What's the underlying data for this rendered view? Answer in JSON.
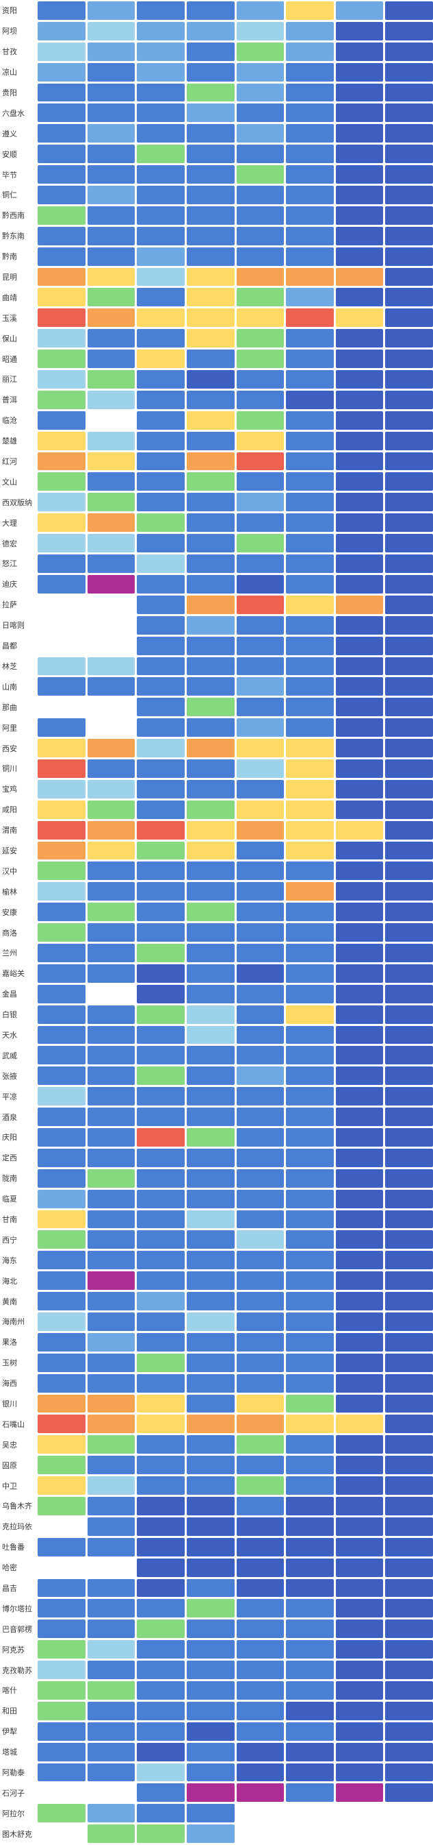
{
  "palette": {
    "w": "#ffffff",
    "db": "#3d5fc1",
    "b": "#4a7fd4",
    "lb": "#6fa9e4",
    "c": "#9cd3ea",
    "g": "#86d97e",
    "y": "#ffd964",
    "o": "#f8a351",
    "r": "#ec6150",
    "m": "#ae2d95"
  },
  "chart_data": {
    "type": "heatmap",
    "title": "",
    "xlabel": "",
    "ylabel": "",
    "num_columns": 8,
    "legend_position": "none",
    "grid": false,
    "scale_order_low_to_high": [
      "db",
      "b",
      "lb",
      "c",
      "g",
      "y",
      "o",
      "r",
      "m"
    ],
    "empty_cell_key": "w",
    "rows": [
      {
        "city": "资阳",
        "cells": [
          "b",
          "lb",
          "b",
          "b",
          "lb",
          "y",
          "lb",
          "db"
        ]
      },
      {
        "city": "阿坝",
        "cells": [
          "lb",
          "c",
          "lb",
          "lb",
          "c",
          "lb",
          "db",
          "db"
        ]
      },
      {
        "city": "甘孜",
        "cells": [
          "c",
          "lb",
          "lb",
          "b",
          "g",
          "lb",
          "db",
          "db"
        ]
      },
      {
        "city": "凉山",
        "cells": [
          "lb",
          "b",
          "lb",
          "b",
          "lb",
          "b",
          "db",
          "db"
        ]
      },
      {
        "city": "贵阳",
        "cells": [
          "b",
          "b",
          "b",
          "g",
          "lb",
          "b",
          "db",
          "db"
        ]
      },
      {
        "city": "六盘水",
        "cells": [
          "b",
          "b",
          "b",
          "lb",
          "b",
          "b",
          "db",
          "db"
        ]
      },
      {
        "city": "遵义",
        "cells": [
          "b",
          "lb",
          "b",
          "b",
          "lb",
          "b",
          "db",
          "db"
        ]
      },
      {
        "city": "安顺",
        "cells": [
          "b",
          "b",
          "g",
          "b",
          "b",
          "b",
          "db",
          "db"
        ]
      },
      {
        "city": "毕节",
        "cells": [
          "b",
          "b",
          "b",
          "b",
          "g",
          "b",
          "db",
          "db"
        ]
      },
      {
        "city": "铜仁",
        "cells": [
          "b",
          "lb",
          "b",
          "b",
          "b",
          "b",
          "db",
          "db"
        ]
      },
      {
        "city": "黔西南",
        "cells": [
          "g",
          "b",
          "b",
          "b",
          "b",
          "b",
          "db",
          "db"
        ]
      },
      {
        "city": "黔东南",
        "cells": [
          "b",
          "b",
          "b",
          "b",
          "b",
          "b",
          "db",
          "db"
        ]
      },
      {
        "city": "黔南",
        "cells": [
          "b",
          "b",
          "lb",
          "b",
          "b",
          "b",
          "db",
          "db"
        ]
      },
      {
        "city": "昆明",
        "cells": [
          "o",
          "y",
          "c",
          "y",
          "o",
          "o",
          "o",
          "db"
        ]
      },
      {
        "city": "曲靖",
        "cells": [
          "y",
          "g",
          "b",
          "y",
          "g",
          "lb",
          "db",
          "db"
        ]
      },
      {
        "city": "玉溪",
        "cells": [
          "r",
          "o",
          "y",
          "y",
          "y",
          "r",
          "y",
          "db"
        ]
      },
      {
        "city": "保山",
        "cells": [
          "c",
          "b",
          "b",
          "y",
          "g",
          "b",
          "db",
          "db"
        ]
      },
      {
        "city": "昭通",
        "cells": [
          "g",
          "b",
          "y",
          "b",
          "g",
          "b",
          "db",
          "db"
        ]
      },
      {
        "city": "丽江",
        "cells": [
          "c",
          "g",
          "b",
          "db",
          "b",
          "b",
          "db",
          "db"
        ]
      },
      {
        "city": "普洱",
        "cells": [
          "g",
          "c",
          "b",
          "b",
          "b",
          "db",
          "db",
          "db"
        ]
      },
      {
        "city": "临沧",
        "cells": [
          "b",
          "w",
          "b",
          "y",
          "g",
          "b",
          "db",
          "db"
        ]
      },
      {
        "city": "楚雄",
        "cells": [
          "y",
          "c",
          "b",
          "b",
          "y",
          "b",
          "db",
          "db"
        ]
      },
      {
        "city": "红河",
        "cells": [
          "o",
          "y",
          "b",
          "o",
          "r",
          "b",
          "db",
          "db"
        ]
      },
      {
        "city": "文山",
        "cells": [
          "g",
          "b",
          "b",
          "g",
          "b",
          "b",
          "db",
          "db"
        ]
      },
      {
        "city": "西双版纳",
        "cells": [
          "c",
          "g",
          "b",
          "b",
          "lb",
          "b",
          "db",
          "db"
        ]
      },
      {
        "city": "大理",
        "cells": [
          "y",
          "o",
          "g",
          "b",
          "b",
          "b",
          "db",
          "db"
        ]
      },
      {
        "city": "德宏",
        "cells": [
          "c",
          "c",
          "b",
          "b",
          "g",
          "b",
          "db",
          "db"
        ]
      },
      {
        "city": "怒江",
        "cells": [
          "b",
          "b",
          "c",
          "b",
          "b",
          "b",
          "db",
          "db"
        ]
      },
      {
        "city": "迪庆",
        "cells": [
          "b",
          "m",
          "b",
          "b",
          "db",
          "b",
          "db",
          "db"
        ]
      },
      {
        "city": "拉萨",
        "cells": [
          "w",
          "w",
          "b",
          "o",
          "r",
          "y",
          "o",
          "db"
        ]
      },
      {
        "city": "日喀则",
        "cells": [
          "w",
          "w",
          "b",
          "lb",
          "b",
          "b",
          "db",
          "db"
        ]
      },
      {
        "city": "昌都",
        "cells": [
          "w",
          "w",
          "b",
          "b",
          "b",
          "b",
          "db",
          "db"
        ]
      },
      {
        "city": "林芝",
        "cells": [
          "c",
          "c",
          "b",
          "b",
          "b",
          "b",
          "db",
          "db"
        ]
      },
      {
        "city": "山南",
        "cells": [
          "b",
          "b",
          "b",
          "b",
          "lb",
          "b",
          "db",
          "db"
        ]
      },
      {
        "city": "那曲",
        "cells": [
          "w",
          "w",
          "b",
          "g",
          "b",
          "b",
          "db",
          "db"
        ]
      },
      {
        "city": "阿里",
        "cells": [
          "b",
          "w",
          "b",
          "b",
          "lb",
          "b",
          "db",
          "db"
        ]
      },
      {
        "city": "西安",
        "cells": [
          "y",
          "o",
          "c",
          "o",
          "y",
          "y",
          "db",
          "db"
        ]
      },
      {
        "city": "铜川",
        "cells": [
          "r",
          "b",
          "b",
          "b",
          "c",
          "y",
          "db",
          "db"
        ]
      },
      {
        "city": "宝鸡",
        "cells": [
          "c",
          "c",
          "b",
          "b",
          "b",
          "y",
          "db",
          "db"
        ]
      },
      {
        "city": "咸阳",
        "cells": [
          "y",
          "g",
          "b",
          "g",
          "y",
          "y",
          "db",
          "db"
        ]
      },
      {
        "city": "渭南",
        "cells": [
          "r",
          "o",
          "r",
          "y",
          "o",
          "y",
          "y",
          "db"
        ]
      },
      {
        "city": "延安",
        "cells": [
          "o",
          "y",
          "g",
          "y",
          "b",
          "y",
          "db",
          "db"
        ]
      },
      {
        "city": "汉中",
        "cells": [
          "g",
          "b",
          "b",
          "b",
          "b",
          "b",
          "db",
          "db"
        ]
      },
      {
        "city": "榆林",
        "cells": [
          "c",
          "b",
          "b",
          "b",
          "b",
          "o",
          "db",
          "db"
        ]
      },
      {
        "city": "安康",
        "cells": [
          "b",
          "g",
          "b",
          "g",
          "b",
          "b",
          "db",
          "db"
        ]
      },
      {
        "city": "商洛",
        "cells": [
          "g",
          "b",
          "b",
          "b",
          "b",
          "b",
          "db",
          "db"
        ]
      },
      {
        "city": "兰州",
        "cells": [
          "b",
          "b",
          "g",
          "b",
          "b",
          "b",
          "db",
          "db"
        ]
      },
      {
        "city": "嘉峪关",
        "cells": [
          "b",
          "b",
          "db",
          "b",
          "db",
          "b",
          "db",
          "db"
        ]
      },
      {
        "city": "金昌",
        "cells": [
          "b",
          "w",
          "db",
          "b",
          "b",
          "b",
          "db",
          "db"
        ]
      },
      {
        "city": "白银",
        "cells": [
          "b",
          "b",
          "g",
          "c",
          "b",
          "y",
          "db",
          "db"
        ]
      },
      {
        "city": "天水",
        "cells": [
          "b",
          "b",
          "b",
          "c",
          "b",
          "b",
          "db",
          "db"
        ]
      },
      {
        "city": "武威",
        "cells": [
          "b",
          "b",
          "b",
          "b",
          "b",
          "b",
          "db",
          "db"
        ]
      },
      {
        "city": "张掖",
        "cells": [
          "b",
          "b",
          "g",
          "b",
          "lb",
          "b",
          "db",
          "db"
        ]
      },
      {
        "city": "平凉",
        "cells": [
          "c",
          "b",
          "b",
          "b",
          "b",
          "b",
          "db",
          "db"
        ]
      },
      {
        "city": "酒泉",
        "cells": [
          "b",
          "b",
          "b",
          "b",
          "b",
          "b",
          "db",
          "db"
        ]
      },
      {
        "city": "庆阳",
        "cells": [
          "b",
          "b",
          "r",
          "g",
          "b",
          "b",
          "db",
          "db"
        ]
      },
      {
        "city": "定西",
        "cells": [
          "b",
          "b",
          "b",
          "b",
          "b",
          "b",
          "db",
          "db"
        ]
      },
      {
        "city": "陇南",
        "cells": [
          "b",
          "g",
          "b",
          "b",
          "b",
          "b",
          "db",
          "db"
        ]
      },
      {
        "city": "临夏",
        "cells": [
          "lb",
          "b",
          "b",
          "b",
          "b",
          "b",
          "db",
          "db"
        ]
      },
      {
        "city": "甘南",
        "cells": [
          "y",
          "b",
          "b",
          "c",
          "b",
          "b",
          "db",
          "db"
        ]
      },
      {
        "city": "西宁",
        "cells": [
          "g",
          "b",
          "b",
          "b",
          "c",
          "b",
          "db",
          "db"
        ]
      },
      {
        "city": "海东",
        "cells": [
          "b",
          "b",
          "b",
          "b",
          "b",
          "b",
          "db",
          "db"
        ]
      },
      {
        "city": "海北",
        "cells": [
          "b",
          "m",
          "b",
          "b",
          "b",
          "b",
          "db",
          "db"
        ]
      },
      {
        "city": "黄南",
        "cells": [
          "b",
          "b",
          "lb",
          "b",
          "b",
          "b",
          "db",
          "db"
        ]
      },
      {
        "city": "海南州",
        "cells": [
          "c",
          "b",
          "b",
          "c",
          "b",
          "b",
          "db",
          "db"
        ]
      },
      {
        "city": "果洛",
        "cells": [
          "b",
          "lb",
          "b",
          "b",
          "b",
          "b",
          "db",
          "db"
        ]
      },
      {
        "city": "玉树",
        "cells": [
          "b",
          "b",
          "g",
          "b",
          "b",
          "b",
          "db",
          "db"
        ]
      },
      {
        "city": "海西",
        "cells": [
          "b",
          "b",
          "b",
          "b",
          "b",
          "b",
          "db",
          "db"
        ]
      },
      {
        "city": "银川",
        "cells": [
          "o",
          "o",
          "y",
          "b",
          "y",
          "g",
          "db",
          "db"
        ]
      },
      {
        "city": "石嘴山",
        "cells": [
          "r",
          "o",
          "y",
          "o",
          "o",
          "y",
          "y",
          "db"
        ]
      },
      {
        "city": "吴忠",
        "cells": [
          "y",
          "g",
          "b",
          "b",
          "g",
          "b",
          "db",
          "db"
        ]
      },
      {
        "city": "固原",
        "cells": [
          "g",
          "b",
          "b",
          "b",
          "b",
          "b",
          "db",
          "db"
        ]
      },
      {
        "city": "中卫",
        "cells": [
          "y",
          "c",
          "b",
          "b",
          "g",
          "b",
          "db",
          "db"
        ]
      },
      {
        "city": "乌鲁木齐",
        "cells": [
          "g",
          "b",
          "db",
          "db",
          "b",
          "db",
          "db",
          "db"
        ]
      },
      {
        "city": "克拉玛依",
        "cells": [
          "w",
          "b",
          "db",
          "db",
          "db",
          "db",
          "db",
          "db"
        ]
      },
      {
        "city": "吐鲁番",
        "cells": [
          "b",
          "b",
          "db",
          "db",
          "db",
          "db",
          "db",
          "db"
        ]
      },
      {
        "city": "哈密",
        "cells": [
          "w",
          "w",
          "db",
          "db",
          "db",
          "db",
          "db",
          "db"
        ]
      },
      {
        "city": "昌吉",
        "cells": [
          "b",
          "b",
          "db",
          "b",
          "db",
          "db",
          "db",
          "db"
        ]
      },
      {
        "city": "博尔塔拉",
        "cells": [
          "b",
          "b",
          "b",
          "g",
          "b",
          "b",
          "db",
          "db"
        ]
      },
      {
        "city": "巴音郭楞",
        "cells": [
          "b",
          "b",
          "g",
          "b",
          "b",
          "b",
          "db",
          "db"
        ]
      },
      {
        "city": "阿克苏",
        "cells": [
          "g",
          "c",
          "b",
          "b",
          "b",
          "b",
          "db",
          "db"
        ]
      },
      {
        "city": "克孜勒苏",
        "cells": [
          "c",
          "b",
          "b",
          "b",
          "b",
          "b",
          "db",
          "db"
        ]
      },
      {
        "city": "喀什",
        "cells": [
          "g",
          "g",
          "b",
          "b",
          "b",
          "b",
          "db",
          "db"
        ]
      },
      {
        "city": "和田",
        "cells": [
          "g",
          "b",
          "b",
          "b",
          "b",
          "db",
          "db",
          "db"
        ]
      },
      {
        "city": "伊犁",
        "cells": [
          "b",
          "b",
          "b",
          "db",
          "b",
          "b",
          "db",
          "db"
        ]
      },
      {
        "city": "塔城",
        "cells": [
          "b",
          "b",
          "db",
          "b",
          "db",
          "db",
          "db",
          "db"
        ]
      },
      {
        "city": "阿勒泰",
        "cells": [
          "b",
          "b",
          "c",
          "b",
          "db",
          "db",
          "db",
          "db"
        ]
      },
      {
        "city": "石河子",
        "cells": [
          "w",
          "w",
          "b",
          "m",
          "m",
          "b",
          "m",
          "db"
        ]
      },
      {
        "city": "阿拉尔",
        "cells": [
          "g",
          "lb",
          "b",
          "b",
          "w",
          "w",
          "w",
          "w"
        ]
      },
      {
        "city": "图木舒克",
        "cells": [
          "w",
          "g",
          "g",
          "lb",
          "w",
          "w",
          "w",
          "w"
        ]
      }
    ]
  }
}
